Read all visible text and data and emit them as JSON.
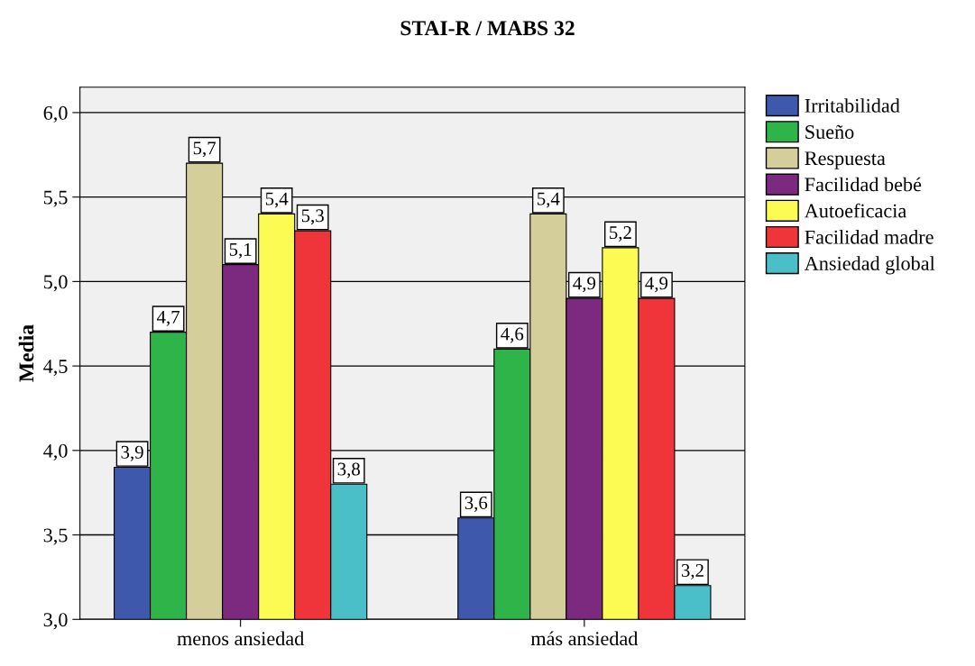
{
  "chart_data": {
    "type": "bar",
    "title": "STAI-R / MABS 32",
    "ylabel": "Media",
    "categories": [
      "menos ansiedad",
      "más ansiedad"
    ],
    "series": [
      {
        "name": "Irritabilidad",
        "color": "#3e58ac",
        "values": [
          3.9,
          3.6
        ],
        "value_labels": [
          "3,9",
          "3,6"
        ]
      },
      {
        "name": "Sueño",
        "color": "#2fb44a",
        "values": [
          4.7,
          4.6
        ],
        "value_labels": [
          "4,7",
          "4,6"
        ]
      },
      {
        "name": "Respuesta",
        "color": "#d4ce9a",
        "values": [
          5.7,
          5.4
        ],
        "value_labels": [
          "5,7",
          "5,4"
        ]
      },
      {
        "name": "Facilidad bebé",
        "color": "#7c2a7f",
        "values": [
          5.1,
          4.9
        ],
        "value_labels": [
          "5,1",
          "4,9"
        ]
      },
      {
        "name": "Autoeficacia",
        "color": "#fbfb54",
        "values": [
          5.4,
          5.2
        ],
        "value_labels": [
          "5,4",
          "5,2"
        ]
      },
      {
        "name": "Facilidad madre",
        "color": "#ef343a",
        "values": [
          5.3,
          4.9
        ],
        "value_labels": [
          "5,3",
          "4,9"
        ]
      },
      {
        "name": "Ansiedad global",
        "color": "#4abfc7",
        "values": [
          3.8,
          3.2
        ],
        "value_labels": [
          "3,8",
          "3,2"
        ]
      }
    ],
    "ylim": [
      3.0,
      6.15
    ],
    "yticks": [
      {
        "value": 3.0,
        "label": "3,0"
      },
      {
        "value": 3.5,
        "label": "3,5"
      },
      {
        "value": 4.0,
        "label": "4,0"
      },
      {
        "value": 4.5,
        "label": "4,5"
      },
      {
        "value": 5.0,
        "label": "5,0"
      },
      {
        "value": 5.5,
        "label": "5,5"
      },
      {
        "value": 6.0,
        "label": "6,0"
      }
    ],
    "grid": "y",
    "legend": "top right"
  }
}
